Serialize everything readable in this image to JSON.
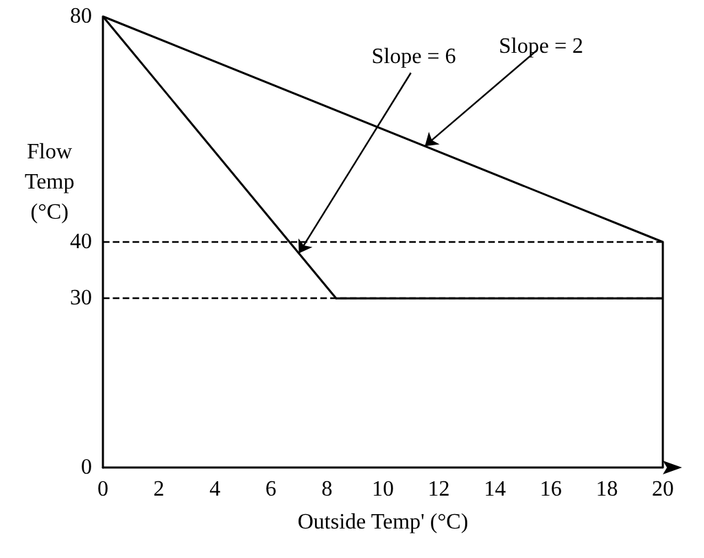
{
  "chart_data": {
    "type": "line",
    "xlabel": "Outside Temp' (°C)",
    "ylabel": "Flow\nTemp\n(°C)",
    "series": [
      {
        "name": null,
        "color": "#000000",
        "x": [
          0,
          20,
          20
        ],
        "values": [
          80,
          40,
          0
        ]
      },
      {
        "name": null,
        "color": "#000000",
        "x": [
          0,
          8.33,
          20
        ],
        "values": [
          80,
          30,
          30
        ]
      }
    ],
    "xlim": [
      0,
      20
    ],
    "xticks": [
      0,
      2,
      4,
      6,
      8,
      10,
      12,
      14,
      16,
      18,
      20
    ],
    "ylim": [
      0,
      80
    ],
    "yticks": [
      0,
      30,
      40,
      80
    ],
    "ref_lines": [
      {
        "axis": "y",
        "value": 40,
        "color": "#000000",
        "line_style": "dashed"
      },
      {
        "axis": "y",
        "value": 30,
        "color": "#000000",
        "line_style": "dashed"
      }
    ],
    "annotations": [
      {
        "text": "Slope = 6",
        "x": 7,
        "y": 38
      },
      {
        "text": "Slope = 2",
        "x": 11.5,
        "y": 57
      }
    ],
    "grid": false,
    "marker": "none",
    "line_style": "solid"
  }
}
